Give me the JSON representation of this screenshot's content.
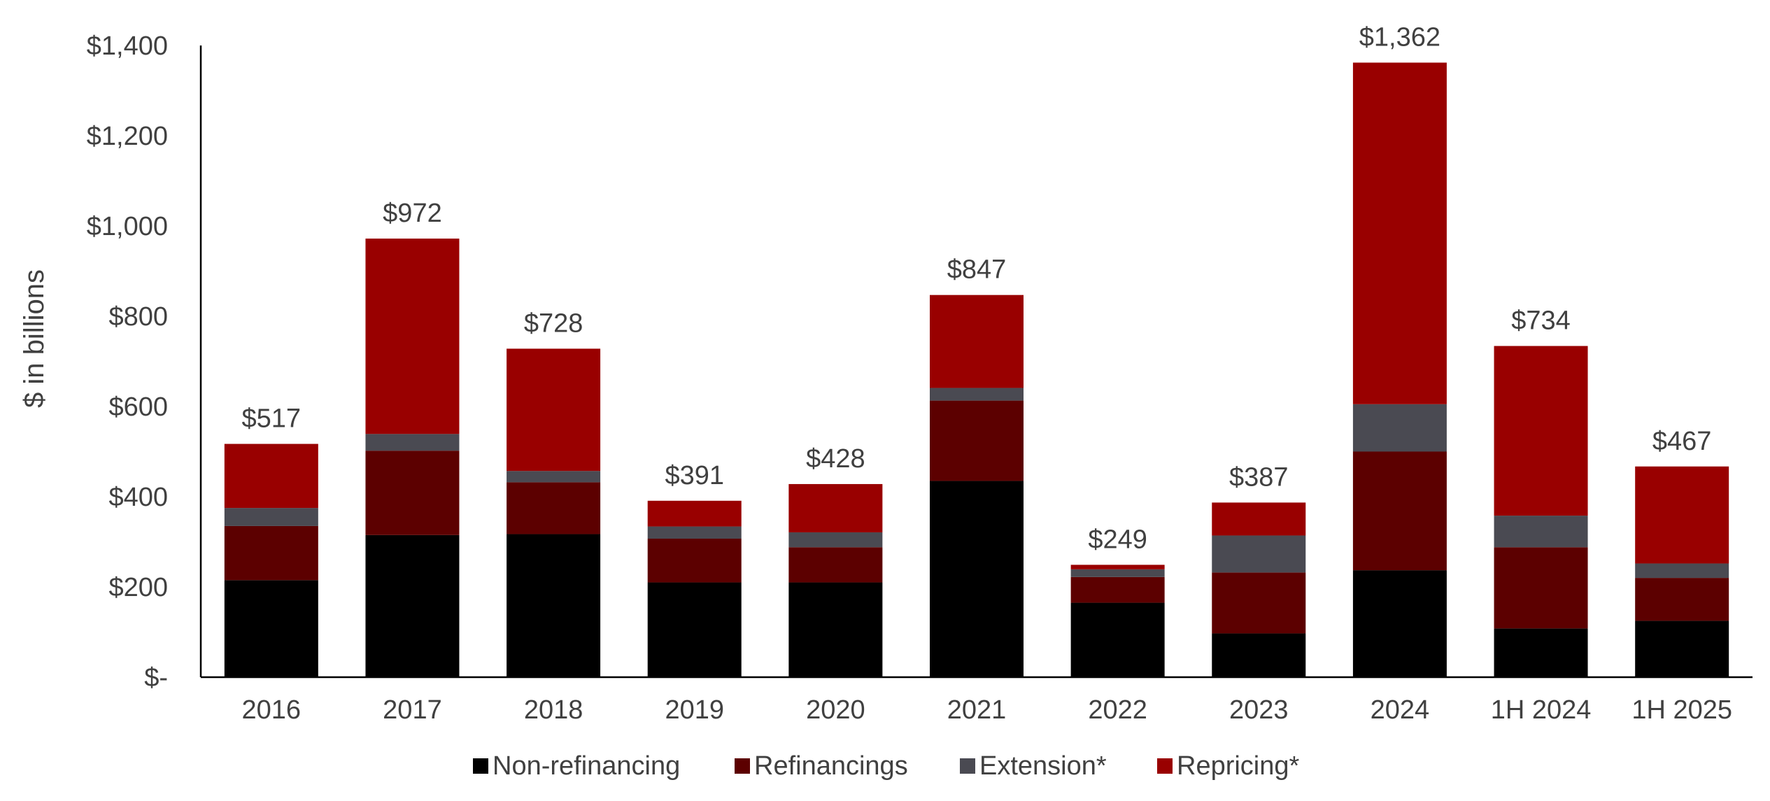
{
  "chart_data": {
    "type": "bar",
    "stacked": true,
    "categories": [
      "2016",
      "2017",
      "2018",
      "2019",
      "2020",
      "2021",
      "2022",
      "2023",
      "2024",
      "1H 2024",
      "1H 2025"
    ],
    "series": [
      {
        "name": "Non-refinancing",
        "color": "#000000",
        "values": [
          215,
          315,
          317,
          210,
          210,
          435,
          165,
          97,
          237,
          108,
          125
        ]
      },
      {
        "name": "Refinancings",
        "color": "#5c0000",
        "values": [
          120,
          187,
          115,
          97,
          78,
          178,
          57,
          135,
          263,
          180,
          95
        ]
      },
      {
        "name": "Extension*",
        "color": "#4a4a52",
        "values": [
          40,
          37,
          25,
          27,
          33,
          28,
          17,
          82,
          105,
          70,
          32
        ]
      },
      {
        "name": "Repricing*",
        "color": "#990000",
        "values": [
          142,
          433,
          271,
          57,
          107,
          206,
          10,
          73,
          757,
          376,
          215
        ]
      }
    ],
    "totals": [
      "$517",
      "$972",
      "$728",
      "$391",
      "$428",
      "$847",
      "$249",
      "$387",
      "$1,362",
      "$734",
      "$467"
    ],
    "ylabel": "$ in billions",
    "ylim": [
      0,
      1400
    ],
    "yticks": [
      {
        "value": 0,
        "label": "$-"
      },
      {
        "value": 200,
        "label": "$200"
      },
      {
        "value": 400,
        "label": "$400"
      },
      {
        "value": 600,
        "label": "$600"
      },
      {
        "value": 800,
        "label": "$800"
      },
      {
        "value": 1000,
        "label": "$1,000"
      },
      {
        "value": 1200,
        "label": "$1,200"
      },
      {
        "value": 1400,
        "label": "$1,400"
      }
    ],
    "grid": false,
    "legend_position": "bottom"
  }
}
